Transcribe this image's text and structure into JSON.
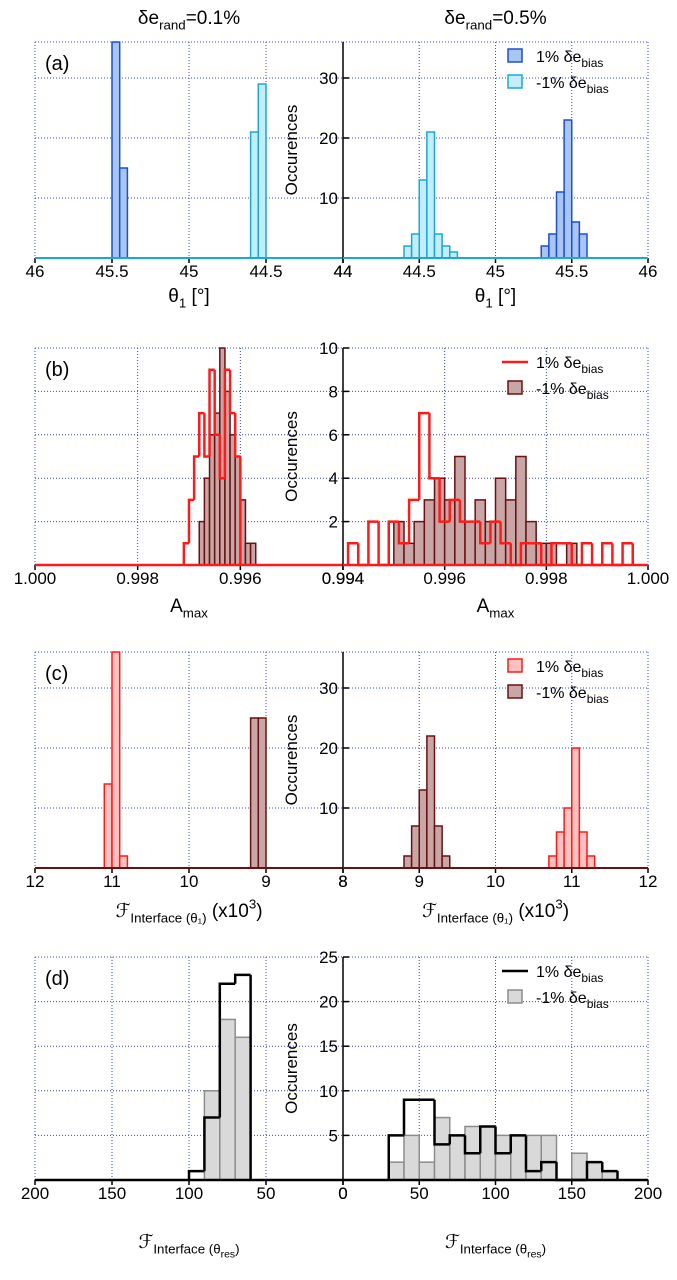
{
  "chart_data": [
    {
      "type": "histogram",
      "label": "(a)",
      "title": {
        "parts": [
          {
            "text": "δe"
          },
          {
            "text": "rand",
            "pos": "sub"
          },
          {
            "text": "=0.1%"
          }
        ]
      },
      "xlim": [
        46,
        44
      ],
      "xticks": [
        46,
        45.5,
        45,
        44.5,
        44
      ],
      "ylim": [
        0,
        36
      ],
      "yticks": [
        10,
        20,
        30
      ],
      "ytick_labels": false,
      "grid": true,
      "x_label": {
        "parts": [
          {
            "text": "θ"
          },
          {
            "text": "1",
            "pos": "sub"
          },
          {
            "text": " [°]"
          }
        ]
      },
      "series": [
        {
          "style": "bar",
          "color": "#a9c6f2",
          "edge_color": "#1c4fd6",
          "bins": [
            45.5,
            45.45,
            45.4
          ],
          "values": [
            36,
            15
          ]
        },
        {
          "style": "bar",
          "color": "#c2eefc",
          "edge_color": "#1aa7dc",
          "bins": [
            44.6,
            44.55,
            44.5
          ],
          "values": [
            21,
            29
          ]
        }
      ]
    },
    {
      "type": "histogram",
      "title": {
        "parts": [
          {
            "text": "δe"
          },
          {
            "text": "rand",
            "pos": "sub"
          },
          {
            "text": "=0.5%"
          }
        ]
      },
      "xlim": [
        44,
        46
      ],
      "xticks": [
        44,
        44.5,
        45,
        45.5,
        46
      ],
      "ylim": [
        0,
        36
      ],
      "yticks": [
        10,
        20,
        30
      ],
      "grid": true,
      "y_label": "Occurences",
      "legend": "upper right",
      "x_label": {
        "parts": [
          {
            "text": "θ"
          },
          {
            "text": "1",
            "pos": "sub"
          },
          {
            "text": " [°]"
          }
        ]
      },
      "series": [
        {
          "name": "1% δe",
          "name_sub": "bias",
          "style": "bar",
          "color": "#a9c6f2",
          "edge_color": "#1c4fd6",
          "bins": [
            45.3,
            45.35,
            45.4,
            45.45,
            45.5,
            45.55,
            45.6
          ],
          "values": [
            2,
            4,
            11,
            23,
            6,
            4
          ]
        },
        {
          "name": "-1% δe",
          "name_sub": "bias",
          "style": "bar",
          "color": "#c2eefc",
          "edge_color": "#1aa7dc",
          "bins": [
            44.4,
            44.45,
            44.5,
            44.55,
            44.6,
            44.65,
            44.7,
            44.75
          ],
          "values": [
            2,
            4,
            13,
            21,
            4,
            2,
            1
          ]
        }
      ]
    },
    {
      "type": "histogram",
      "label": "(b)",
      "xlim": [
        1,
        0.994
      ],
      "xticks": [
        {
          "value": 1,
          "label": "1.000"
        },
        0.998,
        0.996,
        0.994
      ],
      "ylim": [
        0,
        10
      ],
      "yticks": [
        2,
        4,
        6,
        8,
        10
      ],
      "ytick_labels": false,
      "grid": true,
      "x_label": {
        "parts": [
          {
            "text": "A"
          },
          {
            "text": "max",
            "pos": "sub"
          }
        ]
      },
      "series": [
        {
          "style": "step",
          "color": "#ff1a1a",
          "bins": [
            0.9971,
            0.997,
            0.9969,
            0.9968,
            0.9967,
            0.9966,
            0.9965,
            0.9964,
            0.9963,
            0.9962,
            0.9961,
            0.996
          ],
          "values": [
            1,
            3,
            5,
            7,
            5,
            9,
            6,
            4,
            9,
            7,
            5
          ]
        },
        {
          "style": "bar",
          "color": "#c9a6a6",
          "edge_color": "#6b1010",
          "bins": [
            0.9968,
            0.9967,
            0.9966,
            0.9965,
            0.9964,
            0.9963,
            0.9962,
            0.9961,
            0.996,
            0.9959,
            0.9958,
            0.9957
          ],
          "values": [
            2,
            4,
            6,
            7,
            10,
            8,
            6,
            5,
            3,
            1,
            1
          ]
        }
      ]
    },
    {
      "type": "histogram",
      "xlim": [
        0.994,
        1
      ],
      "xticks": [
        0.994,
        0.996,
        0.998,
        {
          "value": 1,
          "label": "1.000"
        }
      ],
      "ylim": [
        0,
        10
      ],
      "yticks": [
        2,
        4,
        6,
        8,
        10
      ],
      "grid": true,
      "y_label": "Occurences",
      "legend": "upper right",
      "x_label": {
        "parts": [
          {
            "text": "A"
          },
          {
            "text": "max",
            "pos": "sub"
          }
        ]
      },
      "series": [
        {
          "name": "1% δe",
          "name_sub": "bias",
          "style": "step",
          "color": "#ff1a1a",
          "bins": [
            0.9941,
            0.9943,
            0.9945,
            0.9947,
            0.9949,
            0.9951,
            0.9953,
            0.9955,
            0.9957,
            0.9959,
            0.9961,
            0.9963,
            0.9965,
            0.9967,
            0.9969,
            0.9971,
            0.9973,
            0.9975,
            0.9977,
            0.9979,
            0.9981,
            0.9983,
            0.9985,
            0.9987,
            0.9989,
            0.9991,
            0.9993,
            0.9995,
            0.9997
          ],
          "values": [
            1,
            0,
            2,
            0,
            2,
            1,
            3,
            7,
            4,
            2,
            3,
            2,
            2,
            1,
            2,
            1,
            0,
            1,
            1,
            0,
            1,
            1,
            0,
            1,
            0,
            1,
            0,
            1
          ]
        },
        {
          "name": "-1% δe",
          "name_sub": "bias",
          "style": "bar",
          "color": "#c9a6a6",
          "edge_color": "#6b1010",
          "bins": [
            0.995,
            0.9952,
            0.9954,
            0.9956,
            0.9958,
            0.996,
            0.9962,
            0.9964,
            0.9966,
            0.9968,
            0.997,
            0.9972,
            0.9974,
            0.9976,
            0.9978,
            0.998,
            0.9982,
            0.9984,
            0.9986
          ],
          "values": [
            2,
            1,
            2,
            3,
            4,
            3,
            5,
            2,
            3,
            2,
            4,
            3,
            5,
            2,
            1,
            1,
            0,
            1
          ]
        }
      ]
    },
    {
      "type": "histogram",
      "label": "(c)",
      "xlim": [
        12,
        8
      ],
      "xticks": [
        12,
        11,
        10,
        9,
        8
      ],
      "ylim": [
        0,
        36
      ],
      "yticks": [
        10,
        20,
        30
      ],
      "ytick_labels": false,
      "grid": true,
      "x_label": {
        "parts": [
          {
            "text": "ℱ"
          },
          {
            "text": "Interface (θ₁)",
            "pos": "sub"
          },
          {
            "text": "   (x10"
          },
          {
            "text": "3",
            "pos": "sup"
          },
          {
            "text": ")"
          }
        ]
      },
      "series": [
        {
          "style": "bar",
          "color": "#ffc0c0",
          "edge_color": "#ff1a1a",
          "bins": [
            11.1,
            11,
            10.9,
            10.8
          ],
          "values": [
            14,
            36,
            2
          ]
        },
        {
          "style": "bar",
          "color": "#c9a6a6",
          "edge_color": "#6b1010",
          "bins": [
            9.2,
            9.1,
            9
          ],
          "values": [
            25,
            25
          ]
        }
      ]
    },
    {
      "type": "histogram",
      "xlim": [
        8,
        12
      ],
      "xticks": [
        8,
        9,
        10,
        11,
        12
      ],
      "ylim": [
        0,
        36
      ],
      "yticks": [
        10,
        20,
        30
      ],
      "grid": true,
      "y_label": "Occurences",
      "legend": "upper right",
      "x_label": {
        "parts": [
          {
            "text": "ℱ"
          },
          {
            "text": "Interface (θ₁)",
            "pos": "sub"
          },
          {
            "text": "   (x10"
          },
          {
            "text": "3",
            "pos": "sup"
          },
          {
            "text": ")"
          }
        ]
      },
      "series": [
        {
          "name": "1% δe",
          "name_sub": "bias",
          "style": "bar",
          "color": "#ffc0c0",
          "edge_color": "#ff1a1a",
          "bins": [
            10.7,
            10.8,
            10.9,
            11,
            11.1,
            11.2,
            11.3
          ],
          "values": [
            2,
            6,
            10,
            20,
            6,
            2
          ]
        },
        {
          "name": "-1% δe",
          "name_sub": "bias",
          "style": "bar",
          "color": "#c9a6a6",
          "edge_color": "#6b1010",
          "bins": [
            8.8,
            8.9,
            9,
            9.1,
            9.2,
            9.3,
            9.4
          ],
          "values": [
            2,
            7,
            13,
            22,
            7,
            2
          ]
        }
      ]
    },
    {
      "type": "histogram",
      "label": "(d)",
      "xlim": [
        200,
        0
      ],
      "xticks": [
        200,
        150,
        100,
        50,
        0
      ],
      "ylim": [
        0,
        25
      ],
      "yticks": [
        5,
        10,
        15,
        20,
        25
      ],
      "ytick_labels": false,
      "grid": true,
      "x_label": {
        "parts": [
          {
            "text": "ℱ"
          },
          {
            "text": "Interface (θ",
            "pos": "sub"
          },
          {
            "text": "res",
            "pos": "sub2"
          },
          {
            "text": ")",
            "pos": "sub"
          }
        ]
      },
      "series": [
        {
          "style": "step",
          "color": "#000000",
          "bins": [
            100,
            90,
            80,
            70,
            60
          ],
          "values": [
            1,
            7,
            22,
            23
          ]
        },
        {
          "style": "bar",
          "color": "#d9d9d9",
          "edge_color": "#8c8c8c",
          "bins": [
            90,
            80,
            70,
            60
          ],
          "values": [
            10,
            18,
            16
          ]
        }
      ]
    },
    {
      "type": "histogram",
      "xlim": [
        0,
        200
      ],
      "xticks": [
        0,
        50,
        100,
        150,
        200
      ],
      "ylim": [
        0,
        25
      ],
      "yticks": [
        5,
        10,
        15,
        20,
        25
      ],
      "grid": true,
      "y_label": "Occurences",
      "legend": "upper right",
      "x_label": {
        "parts": [
          {
            "text": "ℱ"
          },
          {
            "text": "Interface (θ",
            "pos": "sub"
          },
          {
            "text": "res",
            "pos": "sub2"
          },
          {
            "text": ")",
            "pos": "sub"
          }
        ]
      },
      "series": [
        {
          "name": "1% δe",
          "name_sub": "bias",
          "style": "step",
          "color": "#000000",
          "bins": [
            30,
            40,
            50,
            60,
            70,
            80,
            90,
            100,
            110,
            120,
            130,
            140,
            150,
            160,
            170,
            180
          ],
          "values": [
            5,
            9,
            9,
            4,
            5,
            3,
            6,
            3,
            5,
            1,
            2,
            0,
            0,
            2,
            1
          ]
        },
        {
          "name": "-1% δe",
          "name_sub": "bias",
          "style": "bar",
          "color": "#d9d9d9",
          "edge_color": "#8c8c8c",
          "bins": [
            30,
            40,
            50,
            60,
            70,
            80,
            90,
            100,
            110,
            120,
            130,
            140,
            150,
            160,
            170,
            180
          ],
          "values": [
            2,
            5,
            2,
            7,
            5,
            6,
            6,
            5,
            5,
            5,
            5,
            0,
            3,
            2,
            1
          ]
        }
      ]
    }
  ]
}
